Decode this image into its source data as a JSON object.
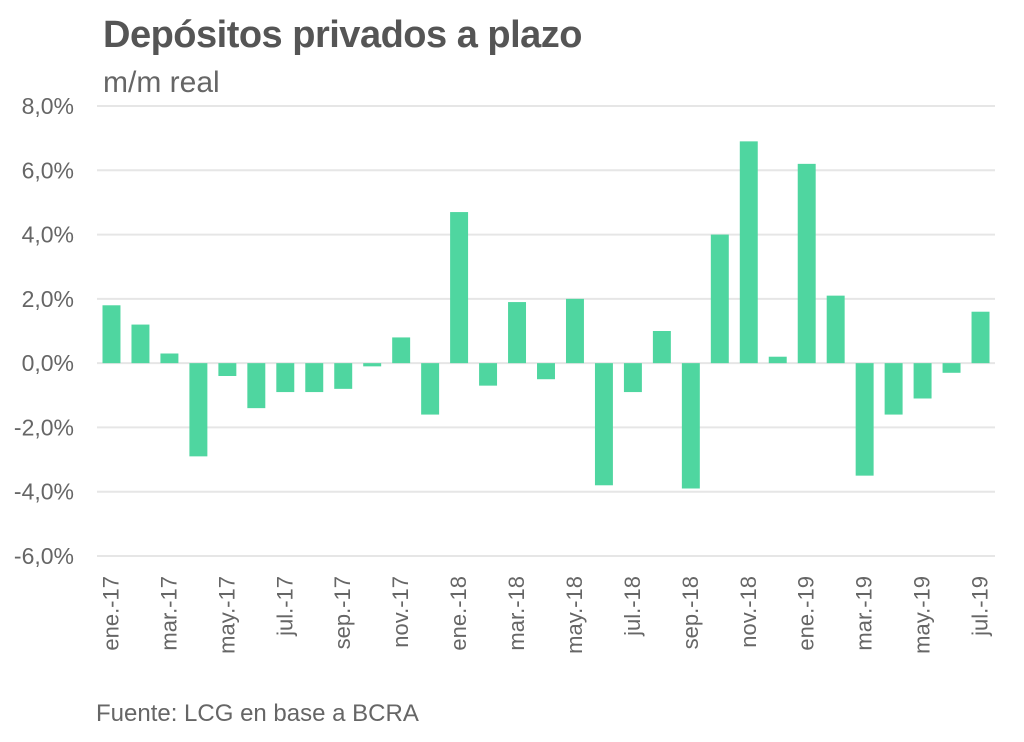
{
  "chart_data": {
    "type": "bar",
    "title": "Depósitos privados a plazo",
    "subtitle": "m/m real",
    "source": "Fuente: LCG en base a BCRA",
    "color": "#4fd6a0",
    "ylim": [
      -6,
      8
    ],
    "yticks": [
      "8,0%",
      "6,0%",
      "4,0%",
      "2,0%",
      "0,0%",
      "-2,0%",
      "-4,0%",
      "-6,0%"
    ],
    "ytick_values": [
      8,
      6,
      4,
      2,
      0,
      -2,
      -4,
      -6
    ],
    "x_tick_labels": [
      "ene.-17",
      "mar.-17",
      "may.-17",
      "jul.-17",
      "sep.-17",
      "nov.-17",
      "ene.-18",
      "mar.-18",
      "may.-18",
      "jul.-18",
      "sep.-18",
      "nov.-18",
      "ene.-19",
      "mar.-19",
      "may.-19",
      "jul.-19"
    ],
    "categories": [
      "ene.-17",
      "feb.-17",
      "mar.-17",
      "abr.-17",
      "may.-17",
      "jun.-17",
      "jul.-17",
      "ago.-17",
      "sep.-17",
      "oct.-17",
      "nov.-17",
      "dic.-17",
      "ene.-18",
      "feb.-18",
      "mar.-18",
      "abr.-18",
      "may.-18",
      "jun.-18",
      "jul.-18",
      "ago.-18",
      "sep.-18",
      "oct.-18",
      "nov.-18",
      "dic.-18",
      "ene.-19",
      "feb.-19",
      "mar.-19",
      "abr.-19",
      "may.-19",
      "jun.-19",
      "jul.-19"
    ],
    "values": [
      1.8,
      1.2,
      0.3,
      -2.9,
      -0.4,
      -1.4,
      -0.9,
      -0.9,
      -0.8,
      -0.1,
      0.8,
      -1.6,
      4.7,
      -0.7,
      1.9,
      -0.5,
      2.0,
      -3.8,
      -0.9,
      1.0,
      -3.9,
      4.0,
      6.9,
      0.2,
      6.2,
      2.1,
      -3.5,
      -1.6,
      -1.1,
      -0.3,
      1.6
    ],
    "grid": true,
    "legend": "none"
  }
}
